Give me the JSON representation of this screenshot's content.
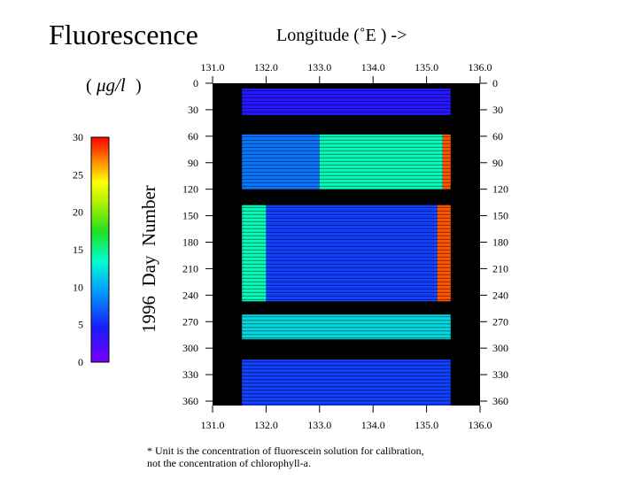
{
  "title": "Fluorescence",
  "unit_open": "(",
  "unit_symbol": "μg/l",
  "unit_close": ")",
  "x_title": "Longitude (˚E ) ->",
  "y_title": "1996  Day  Number",
  "footnote": [
    "* Unit is the concentration of fluorescein solution for calibration,",
    "not the concentration of chlorophyll-a."
  ],
  "chart_data": {
    "type": "heatmap",
    "title": "Fluorescence",
    "unit": "μg/l",
    "xlabel": "Longitude (˚E ) ->",
    "ylabel": "1996  Day  Number",
    "xlim": [
      131.0,
      136.0
    ],
    "ylim": [
      0,
      365
    ],
    "y_inverted": true,
    "x_ticks": [
      "131.0",
      "132.0",
      "133.0",
      "134.0",
      "135.0",
      "136.0"
    ],
    "y_ticks": [
      "0",
      "30",
      "60",
      "90",
      "120",
      "150",
      "180",
      "210",
      "240",
      "270",
      "300",
      "330",
      "360"
    ],
    "colorbar": {
      "range": [
        0,
        30
      ],
      "ticks": [
        "0",
        "5",
        "10",
        "15",
        "20",
        "25",
        "30"
      ],
      "colormap": "rainbow (violet-blue-cyan-green-yellow-red)"
    },
    "background_no_data": "#000000",
    "data_extent_longitude": [
      131.55,
      135.45
    ],
    "observation_periods_days": [
      [
        6,
        36
      ],
      [
        58,
        247
      ],
      [
        262,
        290
      ],
      [
        313,
        365
      ]
    ],
    "regions": [
      {
        "days": [
          6,
          36
        ],
        "lon": [
          131.55,
          135.45
        ],
        "value": 4
      },
      {
        "days": [
          58,
          120
        ],
        "lon": [
          131.55,
          133.0
        ],
        "value": 8
      },
      {
        "days": [
          58,
          120
        ],
        "lon": [
          133.0,
          135.3
        ],
        "value": 14
      },
      {
        "days": [
          58,
          120
        ],
        "lon": [
          135.3,
          135.45
        ],
        "value": 28
      },
      {
        "days": [
          138,
          247
        ],
        "lon": [
          131.55,
          132.0
        ],
        "value": 14
      },
      {
        "days": [
          138,
          247
        ],
        "lon": [
          132.0,
          135.2
        ],
        "value": 6
      },
      {
        "days": [
          138,
          247
        ],
        "lon": [
          135.2,
          135.45
        ],
        "value": 28
      },
      {
        "days": [
          262,
          290
        ],
        "lon": [
          131.55,
          135.45
        ],
        "value": 12
      },
      {
        "days": [
          313,
          365
        ],
        "lon": [
          131.55,
          135.45
        ],
        "value": 6
      }
    ]
  }
}
